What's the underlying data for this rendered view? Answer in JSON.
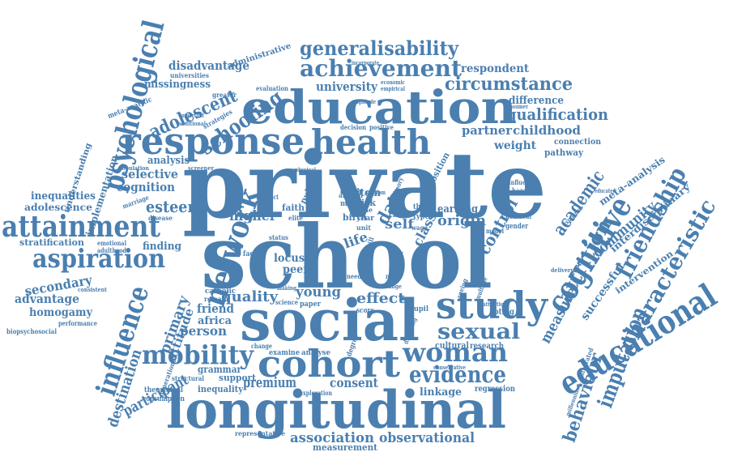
{
  "colors": {
    "ink": "#4a7fb0",
    "background": "#ffffff"
  },
  "words": {
    "private": "private",
    "school": "school",
    "social": "social",
    "education": "education",
    "response": "response",
    "health": "health",
    "longitudinal": "longitudinal",
    "cohort": "cohort",
    "study": "study",
    "educational": "educational",
    "cognitive": "cognitive",
    "attainment": "attainment",
    "aspiration": "aspiration",
    "mobility": "mobility",
    "network": "network",
    "psychological": "psychological",
    "influence": "influence",
    "woman": "woman",
    "evidence": "evidence",
    "characteristic": "characteristic",
    "achievement": "achievement",
    "generalisability": "generalisability",
    "circumstance": "circumstance",
    "qualification": "qualification",
    "schooling": "schooling",
    "adolescent": "adolescent",
    "friendship": "friendship",
    "attrition": "attrition",
    "imputation": "imputation",
    "behaviour": "behaviour",
    "sexual": "sexual",
    "association": "association",
    "observational": "observational",
    "consent": "consent",
    "premium": "premium",
    "participant": "participant",
    "quality": "quality",
    "young": "young",
    "effect": "effect",
    "higher": "higher",
    "esteem": "esteem",
    "selective": "selective",
    "cognition": "cognition",
    "inequalities": "inequalities",
    "adolescence": "adolescence",
    "advantage": "advantage",
    "secondary": "secondary",
    "homogamy": "homogamy",
    "destination": "destination",
    "primary": "primary",
    "attitude": "attitude",
    "friend": "friend",
    "person": "person",
    "africa": "africa",
    "disadvantage": "disadvantage",
    "missingness": "missingness",
    "administrative": "administrative",
    "respondent": "respondent",
    "university": "university",
    "difference": "difference",
    "partner": "partner",
    "childhood": "childhood",
    "weight": "weight",
    "connection": "connection",
    "pathway": "pathway",
    "academic": "academic",
    "community": "community",
    "interdisciplinary": "interdisciplinary",
    "meta_analysis": "meta-analysis",
    "control": "control",
    "data": "data",
    "origin": "origin",
    "self": "self",
    "earning": "earning",
    "life": "life",
    "class": "class",
    "measure": "measure",
    "successful": "successful",
    "intervention": "intervention",
    "linkage": "linkage",
    "measurement": "measurement",
    "grammar": "grammar",
    "support": "support",
    "inequality": "inequality",
    "stratification": "stratification",
    "finding": "finding",
    "analysis": "analysis",
    "implementation": "implementation",
    "understanding": "understanding",
    "locus": "locus",
    "peer": "peer",
    "item": "item",
    "risk": "risk",
    "position": "position",
    "birth": "birth",
    "older": "older",
    "faith": "faith",
    "public": "public",
    "cultural": "cultural",
    "research": "research",
    "regression": "regression",
    "examine": "examine",
    "analyse": "analyse",
    "theoretical": "theoretical",
    "consumption": "consumption",
    "biopsychosocial": "biopsychosocial",
    "performance": "performance",
    "generational": "generational",
    "structural": "structural",
    "representative": "representative",
    "exploration": "exploration",
    "catholic": "catholic",
    "remain": "remain",
    "meta_analytic": "meta-analytic",
    "universities": "universities",
    "evaluation": "evaluation",
    "economic": "economic",
    "empirical": "empirical",
    "strategies": "strategies",
    "greater": "greater",
    "important": "important",
    "additional": "additional",
    "emotional": "emotional",
    "adulthood": "adulthood",
    "consistent": "consistent",
    "disease": "disease",
    "marriage": "marriage",
    "population": "population",
    "screener": "screener",
    "decision": "decision",
    "positive": "positive",
    "physical": "physical",
    "magnitude": "magnitude",
    "consumer": "consumer",
    "incorporate": "incorporate",
    "voting": "voting",
    "pupil": "pupil",
    "paper": "paper",
    "score": "score",
    "degree": "degree",
    "dreaming": "dreaming",
    "conservative": "conservative",
    "millennium": "millennium",
    "integrated": "integrated",
    "exposure": "exposure",
    "political": "political",
    "gender": "gender",
    "influence_small": "influence",
    "hazard": "hazard",
    "educated": "educated",
    "year": "year",
    "unit": "unit",
    "child": "child",
    "third": "third",
    "type": "type",
    "more": "more",
    "african": "african",
    "time": "time",
    "condom": "condom",
    "factor": "factor",
    "status": "status",
    "ageing": "ageing",
    "skill": "skill",
    "need": "need",
    "norm": "norm",
    "change": "change",
    "model": "model",
    "range": "range",
    "theory": "theory",
    "impact": "impact",
    "elite": "elite",
    "science": "science",
    "making": "making",
    "attention": "attention",
    "delivery": "delivery",
    "sample": "sample",
    "wage": "wage",
    "field": "field",
    "multiple": "multiple"
  }
}
